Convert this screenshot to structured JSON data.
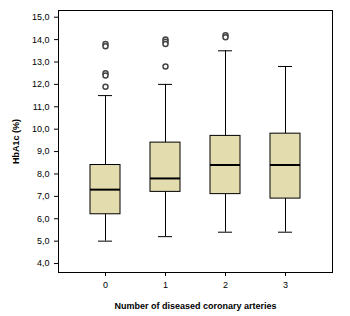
{
  "chart_data": {
    "type": "box",
    "x_label": "Number of diseased coronary arteries",
    "y_label": "HbA1c (%)",
    "categories": [
      "0",
      "1",
      "2",
      "3"
    ],
    "boxes": [
      {
        "whisker_low": 5.0,
        "q1": 6.2,
        "median": 7.3,
        "q3": 8.4,
        "whisker_high": 11.5,
        "outliers": [
          13.8,
          13.7,
          12.5,
          12.4,
          11.9
        ]
      },
      {
        "whisker_low": 5.2,
        "q1": 7.2,
        "median": 7.8,
        "q3": 9.4,
        "whisker_high": 12.0,
        "outliers": [
          14.0,
          13.9,
          13.8,
          12.8
        ]
      },
      {
        "whisker_low": 5.4,
        "q1": 7.1,
        "median": 8.4,
        "q3": 9.7,
        "whisker_high": 13.5,
        "outliers": [
          14.2,
          14.1
        ]
      },
      {
        "whisker_low": 5.4,
        "q1": 6.9,
        "median": 8.4,
        "q3": 9.8,
        "whisker_high": 12.8,
        "outliers": []
      }
    ],
    "color": "#e3dcae",
    "ylim": [
      3.6,
      15.3
    ],
    "yticks": [
      {
        "value": 4,
        "label": "4,0"
      },
      {
        "value": 5,
        "label": "5,0"
      },
      {
        "value": 6,
        "label": "6,0"
      },
      {
        "value": 7,
        "label": "7,0"
      },
      {
        "value": 8,
        "label": "8,0"
      },
      {
        "value": 9,
        "label": "9,0"
      },
      {
        "value": 10,
        "label": "10,0"
      },
      {
        "value": 11,
        "label": "11,0"
      },
      {
        "value": 12,
        "label": "12,0"
      },
      {
        "value": 13,
        "label": "13,0"
      },
      {
        "value": 14,
        "label": "14,0"
      },
      {
        "value": 15,
        "label": "15,0"
      }
    ],
    "grid": false
  }
}
